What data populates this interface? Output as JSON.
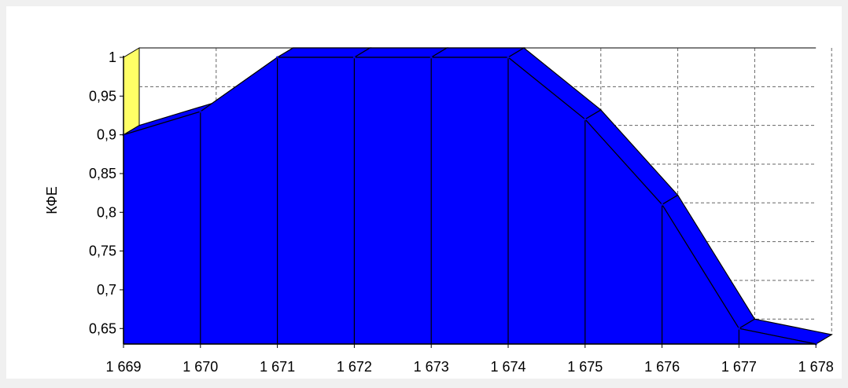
{
  "chart_data": {
    "type": "area",
    "style": "3d",
    "x": [
      "1 669",
      "1 670",
      "1 671",
      "1 672",
      "1 673",
      "1 674",
      "1 675",
      "1 676",
      "1 677",
      "1 678"
    ],
    "series": [
      {
        "values": [
          0.9,
          0.93,
          1.0,
          1.0,
          1.0,
          1.0,
          0.92,
          0.81,
          0.65,
          0.63
        ],
        "color": "#0000ff"
      }
    ],
    "ylabel": "КФЕ",
    "ylim": [
      0.63,
      1.0
    ],
    "yticks": [
      {
        "value": 1.0,
        "label": "1"
      },
      {
        "value": 0.95,
        "label": "0,95"
      },
      {
        "value": 0.9,
        "label": "0,9"
      },
      {
        "value": 0.85,
        "label": "0,85"
      },
      {
        "value": 0.8,
        "label": "0,8"
      },
      {
        "value": 0.75,
        "label": "0,75"
      },
      {
        "value": 0.7,
        "label": "0,7"
      },
      {
        "value": 0.65,
        "label": "0,65"
      }
    ],
    "grid": true,
    "wall_color": "#ffff66",
    "background": "#ffffff"
  }
}
